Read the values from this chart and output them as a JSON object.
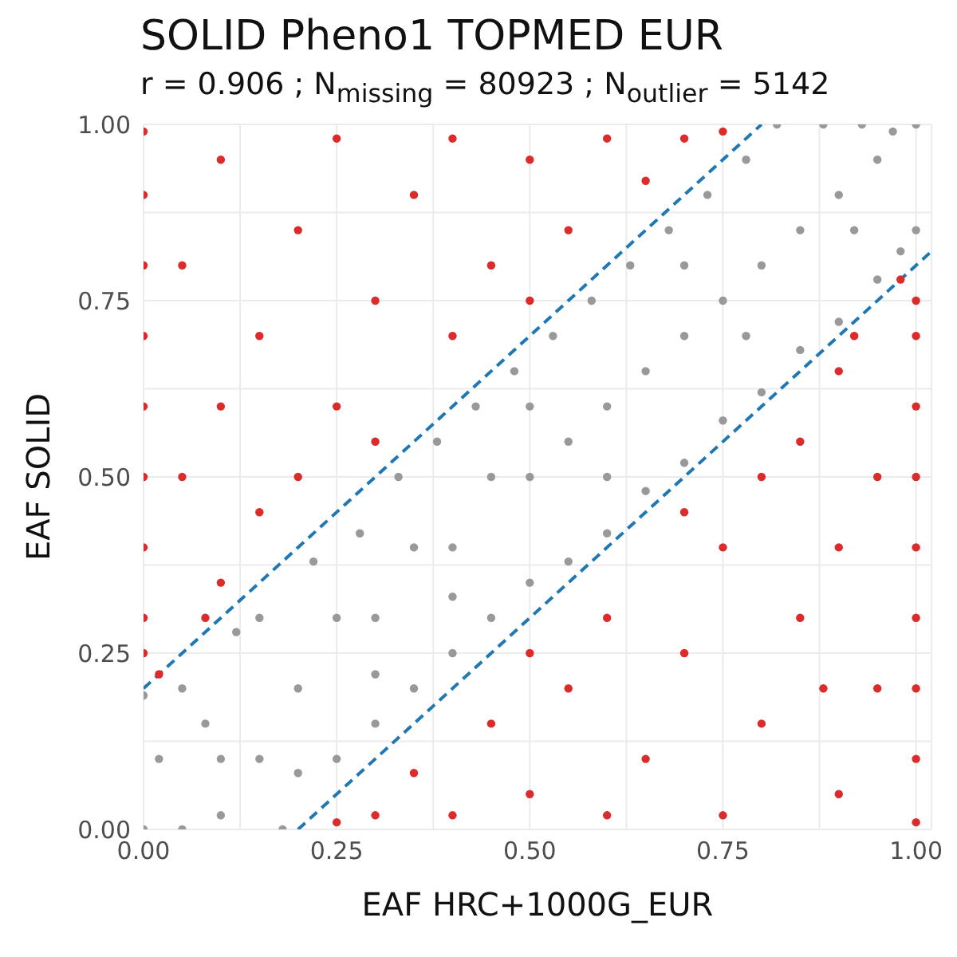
{
  "chart_data": {
    "type": "scatter",
    "title": "SOLID Pheno1 TOPMED EUR",
    "subtitle": "r = 0.906 ; N$_{missing}$ = 80923 ; N$_{outlier}$ = 5142",
    "xlabel": "EAF HRC+1000G_EUR",
    "ylabel": "EAF SOLID",
    "xlim": [
      0,
      1.02
    ],
    "ylim": [
      0,
      1
    ],
    "xticks": [
      {
        "value": 0,
        "label": "0.00"
      },
      {
        "value": 0.125,
        "label": null
      },
      {
        "value": 0.25,
        "label": "0.25"
      },
      {
        "value": 0.375,
        "label": null
      },
      {
        "value": 0.5,
        "label": "0.50"
      },
      {
        "value": 0.625,
        "label": null
      },
      {
        "value": 0.75,
        "label": "0.75"
      },
      {
        "value": 0.875,
        "label": null
      },
      {
        "value": 1,
        "label": "1.00"
      }
    ],
    "yticks": [
      {
        "value": 0,
        "label": "0.00"
      },
      {
        "value": 0.125,
        "label": null
      },
      {
        "value": 0.25,
        "label": "0.25"
      },
      {
        "value": 0.375,
        "label": null
      },
      {
        "value": 0.5,
        "label": "0.50"
      },
      {
        "value": 0.625,
        "label": null
      },
      {
        "value": 0.75,
        "label": "0.75"
      },
      {
        "value": 0.875,
        "label": null
      },
      {
        "value": 1,
        "label": "1.00"
      }
    ],
    "grid": true,
    "marker": "circle",
    "series": [
      {
        "color": "#999999",
        "x": [
          0,
          0,
          0.02,
          0.05,
          0.05,
          0.08,
          0.1,
          0.12,
          0.15,
          0.15,
          0.18,
          0.2,
          0.22,
          0.25,
          0.25,
          0.28,
          0.3,
          0.3,
          0.33,
          0.35,
          0.35,
          0.38,
          0.4,
          0.4,
          0.43,
          0.45,
          0.45,
          0.48,
          0.5,
          0.5,
          0.53,
          0.55,
          0.55,
          0.58,
          0.6,
          0.6,
          0.63,
          0.65,
          0.65,
          0.68,
          0.7,
          0.7,
          0.73,
          0.75,
          0.75,
          0.78,
          0.8,
          0.8,
          0.82,
          0.85,
          0.85,
          0.88,
          0.9,
          0.9,
          0.93,
          0.95,
          0.95,
          0.98,
          1,
          1,
          0.97,
          0.1,
          0.6,
          0.4,
          0.2,
          0.78,
          0.92,
          0.3,
          0.5,
          0.7
        ],
        "values": [
          0,
          0.19,
          0.1,
          0.2,
          0,
          0.15,
          0.02,
          0.28,
          0.1,
          0.3,
          0,
          0.2,
          0.38,
          0.1,
          0.3,
          0.42,
          0.15,
          0.3,
          0.5,
          0.2,
          0.4,
          0.55,
          0.25,
          0.4,
          0.6,
          0.3,
          0.5,
          0.65,
          0.35,
          0.5,
          0.7,
          0.38,
          0.55,
          0.75,
          0.42,
          0.6,
          0.8,
          0.48,
          0.65,
          0.85,
          0.52,
          0.7,
          0.9,
          0.58,
          0.75,
          0.95,
          0.62,
          0.8,
          1,
          0.68,
          0.85,
          1,
          0.72,
          0.9,
          1,
          0.78,
          0.95,
          0.82,
          1,
          0.85,
          0.99,
          0.1,
          0.5,
          0.33,
          0.08,
          0.7,
          0.85,
          0.22,
          0.6,
          0.8
        ]
      },
      {
        "color": "#dc2b2b",
        "x": [
          0,
          0,
          0,
          0,
          0,
          0,
          0,
          0,
          0,
          0.05,
          0.05,
          0.1,
          0.1,
          0.1,
          0.15,
          0.15,
          0.2,
          0.2,
          0.25,
          0.25,
          0.3,
          0.3,
          0.35,
          0.4,
          0.4,
          0.45,
          0.5,
          0.5,
          0.55,
          0.6,
          0.65,
          0.7,
          0.75,
          0.02,
          0.08,
          1,
          1,
          1,
          1,
          1,
          1,
          1,
          1,
          1,
          0.95,
          0.95,
          0.9,
          0.9,
          0.9,
          0.85,
          0.85,
          0.8,
          0.8,
          0.75,
          0.75,
          0.7,
          0.7,
          0.65,
          0.6,
          0.6,
          0.55,
          0.5,
          0.5,
          0.45,
          0.4,
          0.35,
          0.3,
          0.25,
          0.98,
          0.92,
          0.88
        ],
        "values": [
          0.3,
          0.5,
          0.7,
          0.9,
          0.99,
          0.25,
          0.4,
          0.6,
          0.8,
          0.5,
          0.8,
          0.35,
          0.6,
          0.95,
          0.45,
          0.7,
          0.5,
          0.85,
          0.6,
          0.98,
          0.55,
          0.75,
          0.9,
          0.7,
          0.98,
          0.8,
          0.75,
          0.95,
          0.85,
          0.98,
          0.92,
          0.98,
          0.99,
          0.22,
          0.3,
          0.7,
          0.5,
          0.3,
          0.1,
          0.01,
          0.75,
          0.6,
          0.4,
          0.2,
          0.5,
          0.2,
          0.65,
          0.4,
          0.05,
          0.55,
          0.3,
          0.5,
          0.15,
          0.4,
          0.02,
          0.45,
          0.25,
          0.1,
          0.3,
          0.02,
          0.2,
          0.25,
          0.05,
          0.15,
          0.02,
          0.08,
          0.02,
          0.01,
          0.78,
          0.7,
          0.2
        ]
      },
      {
        "type": "line",
        "color": "#1f78b4",
        "line_style": "dashed",
        "marker": "none",
        "x": [
          0,
          0.8
        ],
        "values": [
          0.2,
          1
        ]
      },
      {
        "type": "line",
        "color": "#1f78b4",
        "line_style": "dashed",
        "marker": "none",
        "x": [
          0.2,
          1.02
        ],
        "values": [
          0,
          0.82
        ]
      }
    ]
  }
}
